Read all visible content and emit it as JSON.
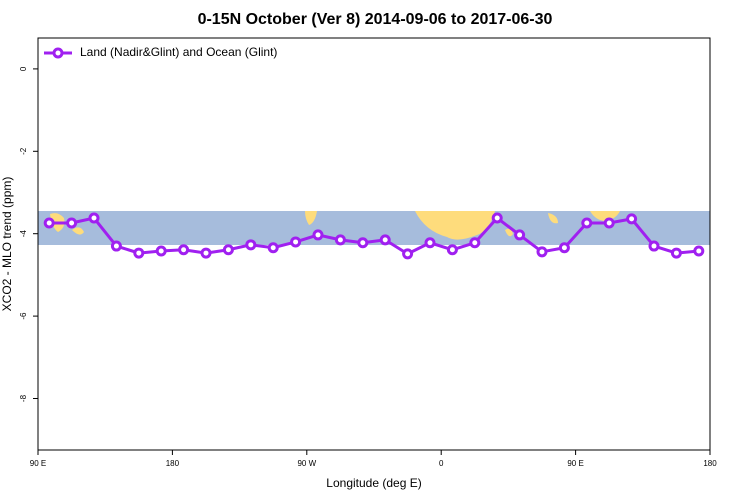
{
  "chart_data": {
    "type": "line",
    "title": "0-15N October (Ver 8)   2014-09-06 to 2017-06-30",
    "x_label": "Longitude (deg E)",
    "y_label": "XCO2 - MLO trend (ppm)",
    "x": [
      97.5,
      112.5,
      127.5,
      142.5,
      157.5,
      172.5,
      187.5,
      202.5,
      217.5,
      232.5,
      247.5,
      262.5,
      277.5,
      292.5,
      307.5,
      322.5,
      337.5,
      352.5,
      367.5,
      382.5,
      397.5,
      412.5,
      427.5,
      442.5,
      457.5,
      472.5,
      487.5,
      502.5,
      517.5,
      532.5
    ],
    "series": [
      {
        "name": "Land (Nadir&Glint) and Ocean (Glint)",
        "color": "#a020f0",
        "values": [
          -3.74,
          -3.74,
          -3.62,
          -4.3,
          -4.47,
          -4.42,
          -4.39,
          -4.47,
          -4.39,
          -4.27,
          -4.34,
          -4.2,
          -4.03,
          -4.15,
          -4.22,
          -4.15,
          -4.49,
          -4.22,
          -4.39,
          -4.22,
          -3.62,
          -4.03,
          -4.44,
          -4.34,
          -3.74,
          -3.74,
          -3.64,
          -4.3,
          -4.47,
          -4.42
        ]
      }
    ],
    "xlim": [
      90,
      540
    ],
    "xticks": [
      {
        "value": 90,
        "label": "90 E"
      },
      180,
      {
        "value": 270,
        "label": "90 W"
      },
      {
        "value": 360,
        "label": "0"
      },
      {
        "value": 450,
        "label": "90 E"
      },
      {
        "value": 540,
        "label": "180"
      }
    ],
    "ylim": [
      -9.25,
      0.75
    ],
    "yticks": [
      0,
      -2,
      -4,
      -6,
      -8
    ],
    "legend": "top-left"
  }
}
